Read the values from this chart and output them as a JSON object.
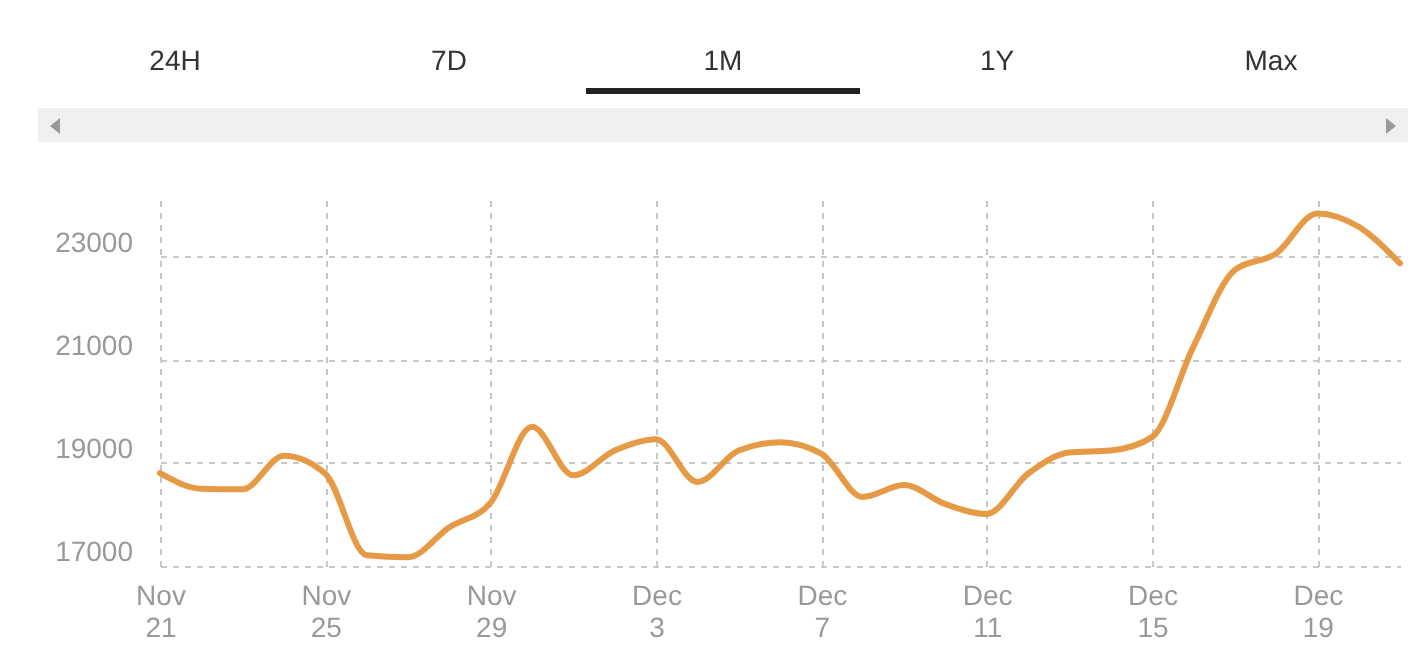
{
  "chart_data": {
    "type": "line",
    "annotations": [
      "24H",
      "7D",
      "1M",
      "1Y",
      "Max"
    ],
    "x": [
      "--11-21",
      "--11-22",
      "--11-23",
      "--11-24",
      "--11-25",
      "--11-26",
      "--11-27",
      "--11-28",
      "--11-29",
      "--11-30",
      "--12-01",
      "--12-02",
      "--12-03",
      "--12-04",
      "--12-05",
      "--12-06",
      "--12-07",
      "--12-08",
      "--12-09",
      "--12-10",
      "--12-11",
      "--12-12",
      "--12-13",
      "--12-14",
      "--12-15",
      "--12-16",
      "--12-17",
      "--12-18",
      "--12-19",
      "--12-20",
      "--12-21"
    ],
    "series": [
      {
        "color": "#e69a45",
        "values": [
          18800,
          18500,
          18490,
          19140,
          18790,
          17210,
          17170,
          17750,
          18230,
          19700,
          18760,
          19240,
          19460,
          18630,
          19240,
          19400,
          19180,
          18340,
          18570,
          18200,
          18010,
          18790,
          19200,
          19240,
          19500,
          21250,
          22740,
          23060,
          23840,
          23580,
          22870
        ]
      }
    ],
    "xlim": [
      "--11-21",
      "--12-21"
    ],
    "xticks": [
      {
        "value": "--11-21",
        "label": "Nov 21"
      },
      {
        "value": "--11-25",
        "label": "Nov 25"
      },
      {
        "value": "--11-29",
        "label": "Nov 29"
      },
      {
        "value": "--12-03",
        "label": "Dec 3"
      },
      {
        "value": "--12-07",
        "label": "Dec 7"
      },
      {
        "value": "--12-11",
        "label": "Dec 11"
      },
      {
        "value": "--12-15",
        "label": "Dec 15"
      },
      {
        "value": "--12-19",
        "label": "Dec 19"
      }
    ],
    "ylim": [
      17000,
      24100
    ],
    "yticks": [
      17000,
      19000,
      21000,
      23000
    ],
    "grid": true,
    "legend": false,
    "marker": "none",
    "line_style": "solid"
  }
}
